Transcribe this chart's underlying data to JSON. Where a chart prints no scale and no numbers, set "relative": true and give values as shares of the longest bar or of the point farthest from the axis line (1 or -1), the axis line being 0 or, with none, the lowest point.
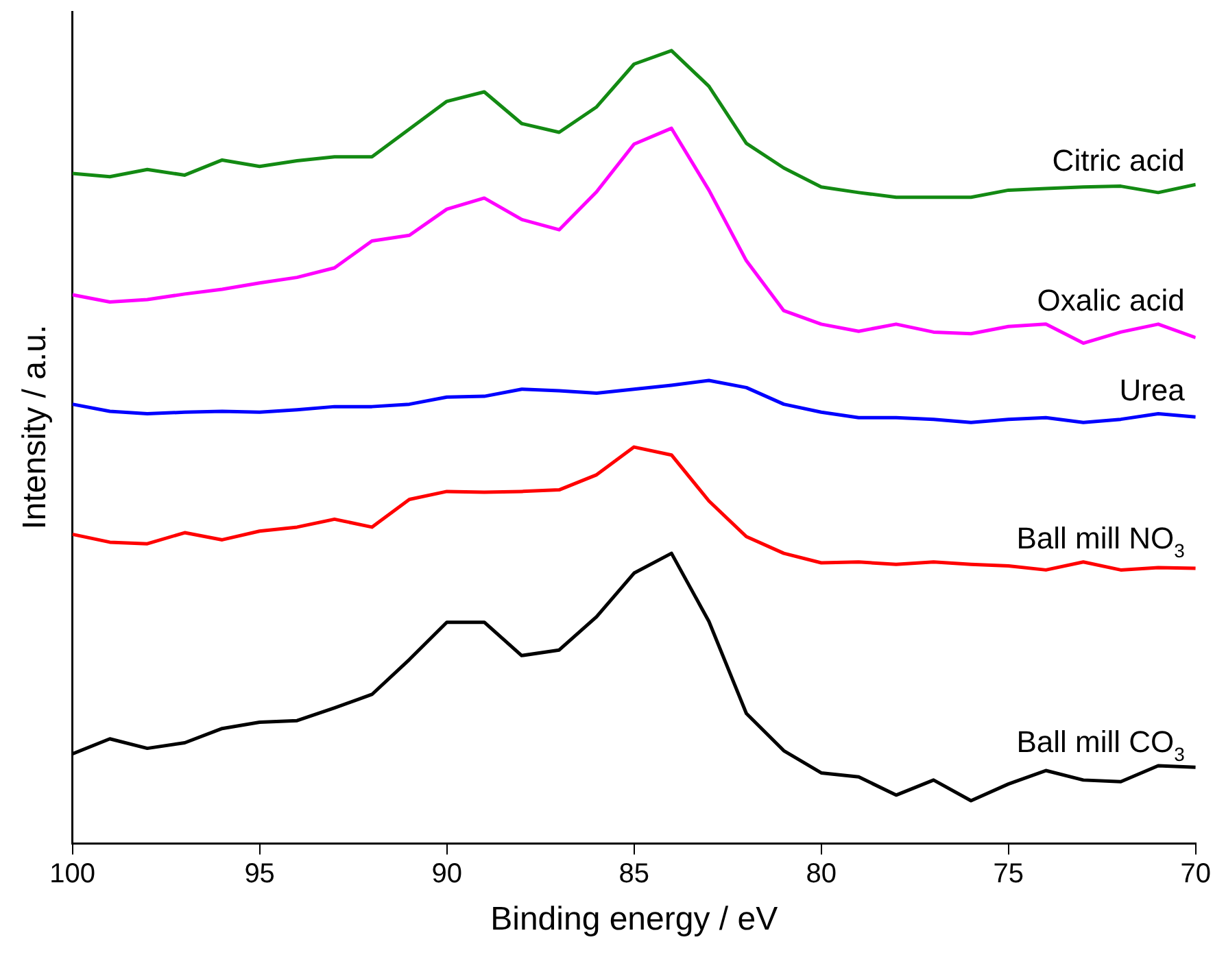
{
  "chart_data": {
    "type": "line",
    "relative": true,
    "xlabel": "Binding energy / eV",
    "ylabel": "Intensity / a.u.",
    "x": [
      100,
      99,
      98,
      97,
      96,
      95,
      94,
      93,
      92,
      91,
      90,
      89,
      88,
      87,
      86,
      85,
      84,
      83,
      82,
      81,
      80,
      79,
      78,
      77,
      76,
      75,
      74,
      73,
      72,
      71,
      70
    ],
    "xlim": [
      100,
      70
    ],
    "xticks": [
      100,
      95,
      90,
      85,
      80,
      75,
      70
    ],
    "grid": false,
    "legend": false,
    "marker": "none",
    "line_style": "solid",
    "series": [
      {
        "name": "Citric acid",
        "color": "#138a13",
        "values": [
          0.845,
          0.841,
          0.85,
          0.843,
          0.862,
          0.854,
          0.861,
          0.866,
          0.866,
          0.901,
          0.936,
          0.948,
          0.908,
          0.897,
          0.929,
          0.983,
          1,
          0.955,
          0.883,
          0.852,
          0.828,
          0.821,
          0.815,
          0.815,
          0.815,
          0.824,
          0.826,
          0.828,
          0.829,
          0.821,
          0.831
        ]
      },
      {
        "name": "Oxalic acid",
        "color": "#ff00ff",
        "values": [
          0.692,
          0.683,
          0.686,
          0.693,
          0.699,
          0.707,
          0.714,
          0.726,
          0.76,
          0.767,
          0.8,
          0.814,
          0.787,
          0.774,
          0.822,
          0.882,
          0.902,
          0.824,
          0.735,
          0.672,
          0.655,
          0.646,
          0.655,
          0.645,
          0.643,
          0.652,
          0.655,
          0.631,
          0.645,
          0.655,
          0.638
        ]
      },
      {
        "name": "Urea",
        "color": "#0000ff",
        "values": [
          0.554,
          0.545,
          0.542,
          0.544,
          0.545,
          0.544,
          0.547,
          0.551,
          0.551,
          0.554,
          0.563,
          0.564,
          0.573,
          0.571,
          0.568,
          0.573,
          0.578,
          0.584,
          0.575,
          0.554,
          0.544,
          0.537,
          0.537,
          0.535,
          0.531,
          0.535,
          0.537,
          0.531,
          0.535,
          0.542,
          0.538
        ]
      },
      {
        "name": "Ball mill NO$_{3}$",
        "color": "#ff0000",
        "values": [
          0.39,
          0.38,
          0.378,
          0.392,
          0.383,
          0.394,
          0.399,
          0.409,
          0.399,
          0.434,
          0.444,
          0.443,
          0.444,
          0.446,
          0.465,
          0.5,
          0.49,
          0.432,
          0.387,
          0.366,
          0.354,
          0.355,
          0.352,
          0.355,
          0.352,
          0.35,
          0.345,
          0.355,
          0.345,
          0.348,
          0.347
        ]
      },
      {
        "name": "Ball mill CO$_{3}$",
        "color": "#000000",
        "values": [
          0.113,
          0.132,
          0.12,
          0.127,
          0.145,
          0.153,
          0.155,
          0.171,
          0.188,
          0.232,
          0.279,
          0.279,
          0.237,
          0.244,
          0.286,
          0.341,
          0.366,
          0.28,
          0.164,
          0.117,
          0.089,
          0.084,
          0.061,
          0.08,
          0.054,
          0.075,
          0.092,
          0.08,
          0.078,
          0.098,
          0.096
        ]
      }
    ]
  }
}
